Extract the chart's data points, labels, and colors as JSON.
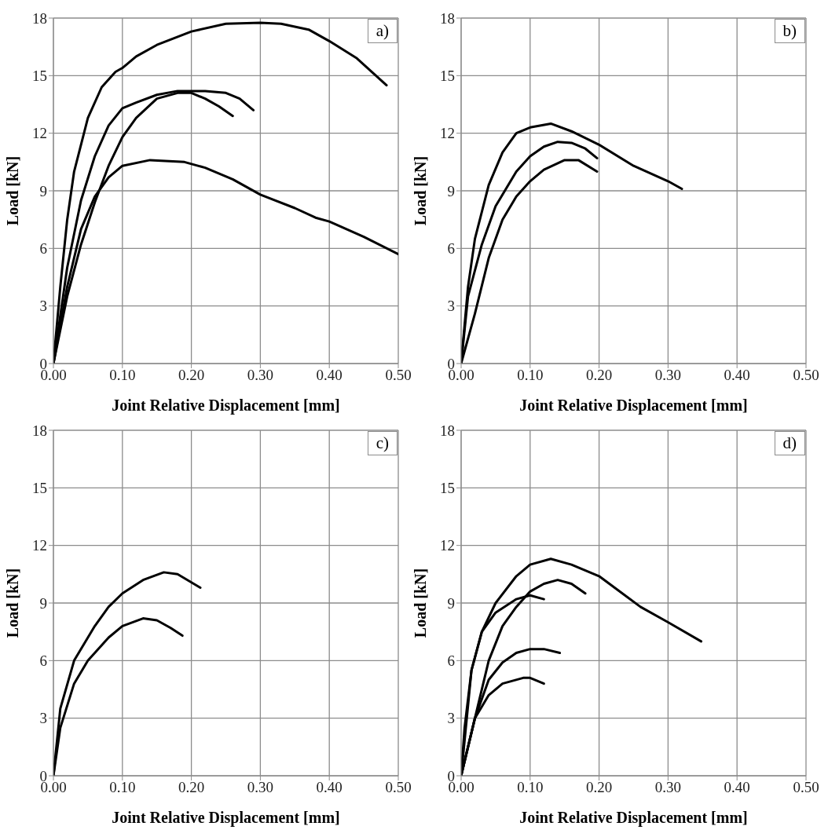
{
  "chart_data": [
    {
      "type": "line",
      "title": "a)",
      "xlabel": "Joint Relative Displacement [mm]",
      "ylabel": "Load [kN]",
      "xlim": [
        0,
        0.5
      ],
      "xticks": [
        {
          "value": 0,
          "label": "0.00"
        },
        {
          "value": 0.1,
          "label": "0.10"
        },
        {
          "value": 0.2,
          "label": "0.20"
        },
        {
          "value": 0.3,
          "label": "0.30"
        },
        {
          "value": 0.4,
          "label": "0.40"
        },
        {
          "value": 0.5,
          "label": "0.50"
        }
      ],
      "ylim": [
        0,
        18
      ],
      "yticks": [
        0,
        3,
        6,
        9,
        12,
        15,
        18
      ],
      "grid": true,
      "marker": "none",
      "line_style": "solid",
      "series": [
        {
          "color": "#000000",
          "x": [
            0,
            0.01,
            0.02,
            0.03,
            0.05,
            0.07,
            0.09,
            0.1,
            0.12,
            0.15,
            0.2,
            0.25,
            0.3,
            0.33,
            0.37,
            0.4,
            0.44,
            0.483
          ],
          "values": [
            0,
            4,
            7.5,
            10,
            12.8,
            14.4,
            15.2,
            15.4,
            16,
            16.6,
            17.3,
            17.7,
            17.75,
            17.7,
            17.4,
            16.8,
            15.9,
            14.5
          ]
        },
        {
          "color": "#000000",
          "x": [
            0,
            0.02,
            0.04,
            0.06,
            0.08,
            0.1,
            0.12,
            0.15,
            0.18,
            0.2,
            0.22,
            0.25,
            0.27,
            0.29
          ],
          "values": [
            0,
            5,
            8.5,
            10.8,
            12.4,
            13.3,
            13.6,
            14,
            14.2,
            14.2,
            14.2,
            14.1,
            13.8,
            13.2
          ]
        },
        {
          "color": "#000000",
          "x": [
            0,
            0.02,
            0.04,
            0.06,
            0.08,
            0.1,
            0.12,
            0.15,
            0.18,
            0.2,
            0.22,
            0.24,
            0.26
          ],
          "values": [
            0,
            3.5,
            6.2,
            8.4,
            10.3,
            11.8,
            12.8,
            13.8,
            14.1,
            14.1,
            13.8,
            13.4,
            12.9
          ]
        },
        {
          "color": "#000000",
          "x": [
            0,
            0.02,
            0.04,
            0.06,
            0.08,
            0.1,
            0.14,
            0.19,
            0.22,
            0.26,
            0.3,
            0.35,
            0.38,
            0.4,
            0.45,
            0.5
          ],
          "values": [
            0,
            4,
            7,
            8.7,
            9.7,
            10.3,
            10.6,
            10.5,
            10.2,
            9.6,
            8.8,
            8.1,
            7.6,
            7.4,
            6.6,
            5.7
          ]
        }
      ]
    },
    {
      "type": "line",
      "title": "b)",
      "xlabel": "Joint Relative Displacement [mm]",
      "ylabel": "Load [kN]",
      "xlim": [
        0,
        0.5
      ],
      "xticks": [
        {
          "value": 0,
          "label": "0.00"
        },
        {
          "value": 0.1,
          "label": "0.10"
        },
        {
          "value": 0.2,
          "label": "0.20"
        },
        {
          "value": 0.3,
          "label": "0.30"
        },
        {
          "value": 0.4,
          "label": "0.40"
        },
        {
          "value": 0.5,
          "label": "0.50"
        }
      ],
      "ylim": [
        0,
        18
      ],
      "yticks": [
        0,
        3,
        6,
        9,
        12,
        15,
        18
      ],
      "grid": true,
      "marker": "none",
      "line_style": "solid",
      "series": [
        {
          "color": "#000000",
          "x": [
            0,
            0.01,
            0.02,
            0.04,
            0.06,
            0.08,
            0.1,
            0.13,
            0.16,
            0.2,
            0.25,
            0.3,
            0.32
          ],
          "values": [
            0,
            4,
            6.5,
            9.3,
            11,
            12,
            12.3,
            12.5,
            12.1,
            11.4,
            10.3,
            9.5,
            9.1
          ]
        },
        {
          "color": "#000000",
          "x": [
            0,
            0.01,
            0.03,
            0.05,
            0.08,
            0.1,
            0.12,
            0.14,
            0.16,
            0.18,
            0.197
          ],
          "values": [
            0,
            3.5,
            6.2,
            8.2,
            10,
            10.8,
            11.3,
            11.55,
            11.5,
            11.2,
            10.7
          ]
        },
        {
          "color": "#000000",
          "x": [
            0,
            0.02,
            0.04,
            0.06,
            0.08,
            0.1,
            0.12,
            0.15,
            0.17,
            0.197
          ],
          "values": [
            0,
            2.6,
            5.5,
            7.5,
            8.7,
            9.5,
            10.1,
            10.6,
            10.6,
            10
          ]
        }
      ]
    },
    {
      "type": "line",
      "title": "c)",
      "xlabel": "Joint Relative Displacement [mm]",
      "ylabel": "Load [kN]",
      "xlim": [
        0,
        0.5
      ],
      "xticks": [
        {
          "value": 0,
          "label": "0.00"
        },
        {
          "value": 0.1,
          "label": "0.10"
        },
        {
          "value": 0.2,
          "label": "0.20"
        },
        {
          "value": 0.3,
          "label": "0.30"
        },
        {
          "value": 0.4,
          "label": "0.40"
        },
        {
          "value": 0.5,
          "label": "0.50"
        }
      ],
      "ylim": [
        0,
        18
      ],
      "yticks": [
        0,
        3,
        6,
        9,
        12,
        15,
        18
      ],
      "grid": true,
      "marker": "none",
      "line_style": "solid",
      "series": [
        {
          "color": "#000000",
          "x": [
            0,
            0.01,
            0.03,
            0.06,
            0.08,
            0.1,
            0.13,
            0.16,
            0.18,
            0.213
          ],
          "values": [
            0,
            3.5,
            6,
            7.8,
            8.8,
            9.5,
            10.2,
            10.6,
            10.5,
            9.8
          ]
        },
        {
          "color": "#000000",
          "x": [
            0,
            0.01,
            0.03,
            0.05,
            0.08,
            0.1,
            0.13,
            0.15,
            0.17,
            0.187
          ],
          "values": [
            0,
            2.5,
            4.8,
            6,
            7.2,
            7.8,
            8.2,
            8.1,
            7.7,
            7.3
          ]
        }
      ]
    },
    {
      "type": "line",
      "title": "d)",
      "xlabel": "Joint Relative Displacement [mm]",
      "ylabel": "Load [kN]",
      "xlim": [
        0,
        0.5
      ],
      "xticks": [
        {
          "value": 0,
          "label": "0.00"
        },
        {
          "value": 0.1,
          "label": "0.10"
        },
        {
          "value": 0.2,
          "label": "0.20"
        },
        {
          "value": 0.3,
          "label": "0.30"
        },
        {
          "value": 0.4,
          "label": "0.40"
        },
        {
          "value": 0.5,
          "label": "0.50"
        }
      ],
      "ylim": [
        0,
        18
      ],
      "yticks": [
        0,
        3,
        6,
        9,
        12,
        15,
        18
      ],
      "grid": true,
      "marker": "none",
      "line_style": "solid",
      "series": [
        {
          "color": "#000000",
          "x": [
            0,
            0.005,
            0.015,
            0.03,
            0.05,
            0.08,
            0.1,
            0.13,
            0.16,
            0.2,
            0.26,
            0.3,
            0.348
          ],
          "values": [
            0,
            2.5,
            5.5,
            7.5,
            9,
            10.4,
            11,
            11.3,
            11,
            10.4,
            8.8,
            8,
            7
          ]
        },
        {
          "color": "#000000",
          "x": [
            0,
            0.015,
            0.03,
            0.05,
            0.08,
            0.1,
            0.12
          ],
          "values": [
            0,
            5.5,
            7.5,
            8.5,
            9.2,
            9.4,
            9.2
          ]
        },
        {
          "color": "#000000",
          "x": [
            0,
            0.02,
            0.04,
            0.06,
            0.08,
            0.1,
            0.12,
            0.14,
            0.16,
            0.18
          ],
          "values": [
            0,
            3,
            6,
            7.8,
            8.8,
            9.6,
            10,
            10.2,
            10,
            9.5
          ]
        },
        {
          "color": "#000000",
          "x": [
            0,
            0.02,
            0.04,
            0.06,
            0.08,
            0.1,
            0.12,
            0.143
          ],
          "values": [
            0,
            3,
            5,
            5.9,
            6.4,
            6.6,
            6.6,
            6.4
          ]
        },
        {
          "color": "#000000",
          "x": [
            0,
            0.02,
            0.04,
            0.06,
            0.09,
            0.1,
            0.12
          ],
          "values": [
            0,
            3,
            4.2,
            4.8,
            5.1,
            5.1,
            4.8
          ]
        }
      ]
    }
  ]
}
